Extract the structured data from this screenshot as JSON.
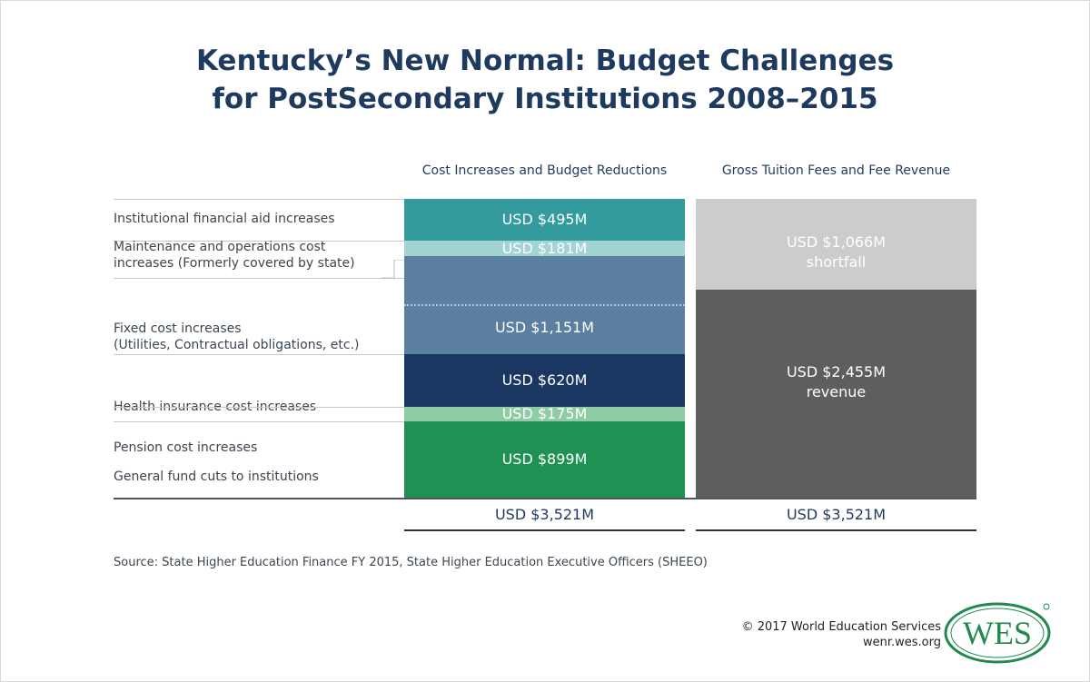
{
  "chart_data": {
    "type": "bar",
    "stacked": true,
    "title": "Kentucky’s New Normal: Budget Challenges for PostSecondary Institutions 2008–2015",
    "title_lines": [
      "Kentucky’s New Normal: Budget Challenges",
      "for PostSecondary Institutions 2008–2015"
    ],
    "categories": [
      "Cost Increases and Budget Reductions",
      "Gross Tuition Fees and Fee Revenue"
    ],
    "unit": "USD millions",
    "cost_series": [
      {
        "name": "Institutional financial aid increases",
        "label_lines": [
          "Institutional financial aid increases"
        ],
        "value": 495,
        "value_label": "USD $495M",
        "color": "#339a9e"
      },
      {
        "name": "Maintenance and operations cost increases (Formerly covered by state)",
        "label_lines": [
          "Maintenance and operations cost",
          "increases (Formerly covered by state)"
        ],
        "value": 181,
        "value_label": "USD $181M",
        "color": "#a3d4d3"
      },
      {
        "name": "Fixed cost increases (Utilities, Contractual obligations, etc.)",
        "label_lines": [
          "Fixed cost increases",
          "(Utilities, Contractual obligations, etc.)"
        ],
        "value": 1151,
        "value_label": "USD $1,151M",
        "color": "#5a7fa0"
      },
      {
        "name": "Health insurance cost increases",
        "label_lines": [
          "Health insurance cost increases"
        ],
        "value": 620,
        "value_label": "USD $620M",
        "color": "#1a3762"
      },
      {
        "name": "Pension cost increases",
        "label_lines": [
          "Pension cost increases"
        ],
        "value": 175,
        "value_label": "USD $175M",
        "color": "#8fcba5"
      },
      {
        "name": "General fund cuts to institutions",
        "label_lines": [
          "General fund cuts to institutions"
        ],
        "value": 899,
        "value_label": "USD $899M",
        "color": "#1f9152"
      }
    ],
    "revenue_series": [
      {
        "name": "shortfall",
        "value": 1066,
        "label_lines": [
          "USD $1,066M",
          "shortfall"
        ],
        "color": "#cccccc"
      },
      {
        "name": "revenue",
        "value": 2455,
        "label_lines": [
          "USD $2,455M",
          "revenue"
        ],
        "color": "#5d5f5e"
      }
    ],
    "totals": [
      "USD $3,521M",
      "USD $3,521M"
    ],
    "total_value": 3521
  },
  "source": "Source: State Higher Education Finance FY 2015, State Higher Education Executive Officers (SHEEO)",
  "footer": {
    "copyright": "© 2017 World Education Services",
    "website": "wenr.wes.org",
    "logo_text": "WES",
    "logo_color": "#1f8a4c"
  }
}
